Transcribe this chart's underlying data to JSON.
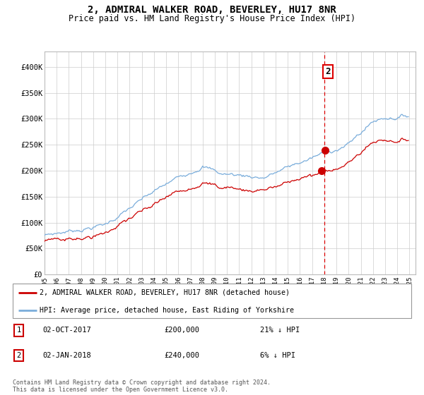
{
  "title": "2, ADMIRAL WALKER ROAD, BEVERLEY, HU17 8NR",
  "subtitle": "Price paid vs. HM Land Registry's House Price Index (HPI)",
  "title_fontsize": 10,
  "subtitle_fontsize": 8.5,
  "ylabel_ticks": [
    "£0",
    "£50K",
    "£100K",
    "£150K",
    "£200K",
    "£250K",
    "£300K",
    "£350K",
    "£400K"
  ],
  "ytick_values": [
    0,
    50000,
    100000,
    150000,
    200000,
    250000,
    300000,
    350000,
    400000
  ],
  "ylim": [
    0,
    430000
  ],
  "xlim_start": 1995.0,
  "xlim_end": 2025.5,
  "xtick_labels": [
    "1995",
    "1996",
    "1997",
    "1998",
    "1999",
    "2000",
    "2001",
    "2002",
    "2003",
    "2004",
    "2005",
    "2006",
    "2007",
    "2008",
    "2009",
    "2010",
    "2011",
    "2012",
    "2013",
    "2014",
    "2015",
    "2016",
    "2017",
    "2018",
    "2019",
    "2020",
    "2021",
    "2022",
    "2023",
    "2024",
    "2025"
  ],
  "sale1_x": 2017.75,
  "sale1_y": 200000,
  "sale2_x": 2018.04,
  "sale2_y": 240000,
  "vline_x": 2018.0,
  "hpi_color": "#7aaddb",
  "property_color": "#cc0000",
  "vline_color": "#dd0000",
  "grid_color": "#cccccc",
  "background_color": "#ffffff",
  "legend_label1": "2, ADMIRAL WALKER ROAD, BEVERLEY, HU17 8NR (detached house)",
  "legend_label2": "HPI: Average price, detached house, East Riding of Yorkshire",
  "table_row1": [
    "1",
    "02-OCT-2017",
    "£200,000",
    "21% ↓ HPI"
  ],
  "table_row2": [
    "2",
    "02-JAN-2018",
    "£240,000",
    "6% ↓ HPI"
  ],
  "footnote": "Contains HM Land Registry data © Crown copyright and database right 2024.\nThis data is licensed under the Open Government Licence v3.0."
}
